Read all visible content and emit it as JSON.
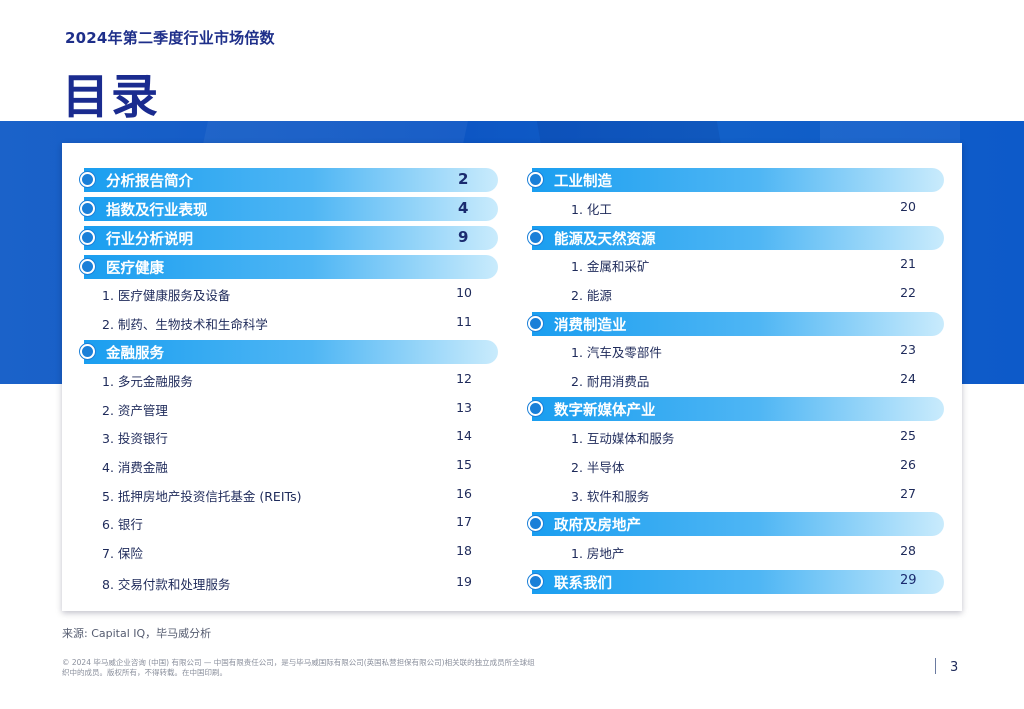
{
  "header": {
    "subtitle": "2024年第二季度行业市场倍数",
    "title": "目录"
  },
  "left": {
    "sections": [
      {
        "label": "分析报告简介",
        "page": "2"
      },
      {
        "label": "指数及行业表现",
        "page": "4"
      },
      {
        "label": "行业分析说明",
        "page": "9"
      },
      {
        "label": "医疗健康",
        "page": ""
      },
      {
        "label": "金融服务",
        "page": ""
      }
    ],
    "items": [
      {
        "label": "1. 医疗健康服务及设备",
        "page": "10"
      },
      {
        "label": "2. 制药、生物技术和生命科学",
        "page": "11"
      },
      {
        "label": "1. 多元金融服务",
        "page": "12"
      },
      {
        "label": "2. 资产管理",
        "page": "13"
      },
      {
        "label": "3. 投资银行",
        "page": "14"
      },
      {
        "label": "4. 消费金融",
        "page": "15"
      },
      {
        "label": "5. 抵押房地产投资信托基金 (REITs)",
        "page": "16"
      },
      {
        "label": "6. 银行",
        "page": "17"
      },
      {
        "label": "7. 保险",
        "page": "18"
      },
      {
        "label": "8. 交易付款和处理服务",
        "page": "19"
      }
    ]
  },
  "right": {
    "sections": [
      {
        "label": "工业制造",
        "page": ""
      },
      {
        "label": "能源及天然资源",
        "page": ""
      },
      {
        "label": "消费制造业",
        "page": ""
      },
      {
        "label": "数字新媒体产业",
        "page": ""
      },
      {
        "label": "政府及房地产",
        "page": ""
      },
      {
        "label": "联系我们",
        "page": "29"
      }
    ],
    "items": [
      {
        "label": "1. 化工",
        "page": "20"
      },
      {
        "label": "1. 金属和采矿",
        "page": "21"
      },
      {
        "label": "2. 能源",
        "page": "22"
      },
      {
        "label": "1. 汽车及零部件",
        "page": "23"
      },
      {
        "label": "2. 耐用消费品",
        "page": "24"
      },
      {
        "label": "1. 互动媒体和服务",
        "page": "25"
      },
      {
        "label": "2. 半导体",
        "page": "26"
      },
      {
        "label": "3. 软件和服务",
        "page": "27"
      },
      {
        "label": "1. 房地产",
        "page": "28"
      }
    ]
  },
  "footer": {
    "source": "来源: Capital IQ，毕马威分析",
    "copyright": "© 2024 毕马威企业咨询 (中国) 有限公司 — 中国有限责任公司，是与毕马威国际有限公司(英国私营担保有限公司)相关联的独立成员所全球组织中的成员。版权所有，不得转载。在中国印刷。",
    "page_number": "3"
  },
  "colors": {
    "brand_blue": "#1a2b8f",
    "band_blue": "#0d56c4",
    "pill_start": "#1a9ef0",
    "pill_end": "#c9ebfc"
  }
}
